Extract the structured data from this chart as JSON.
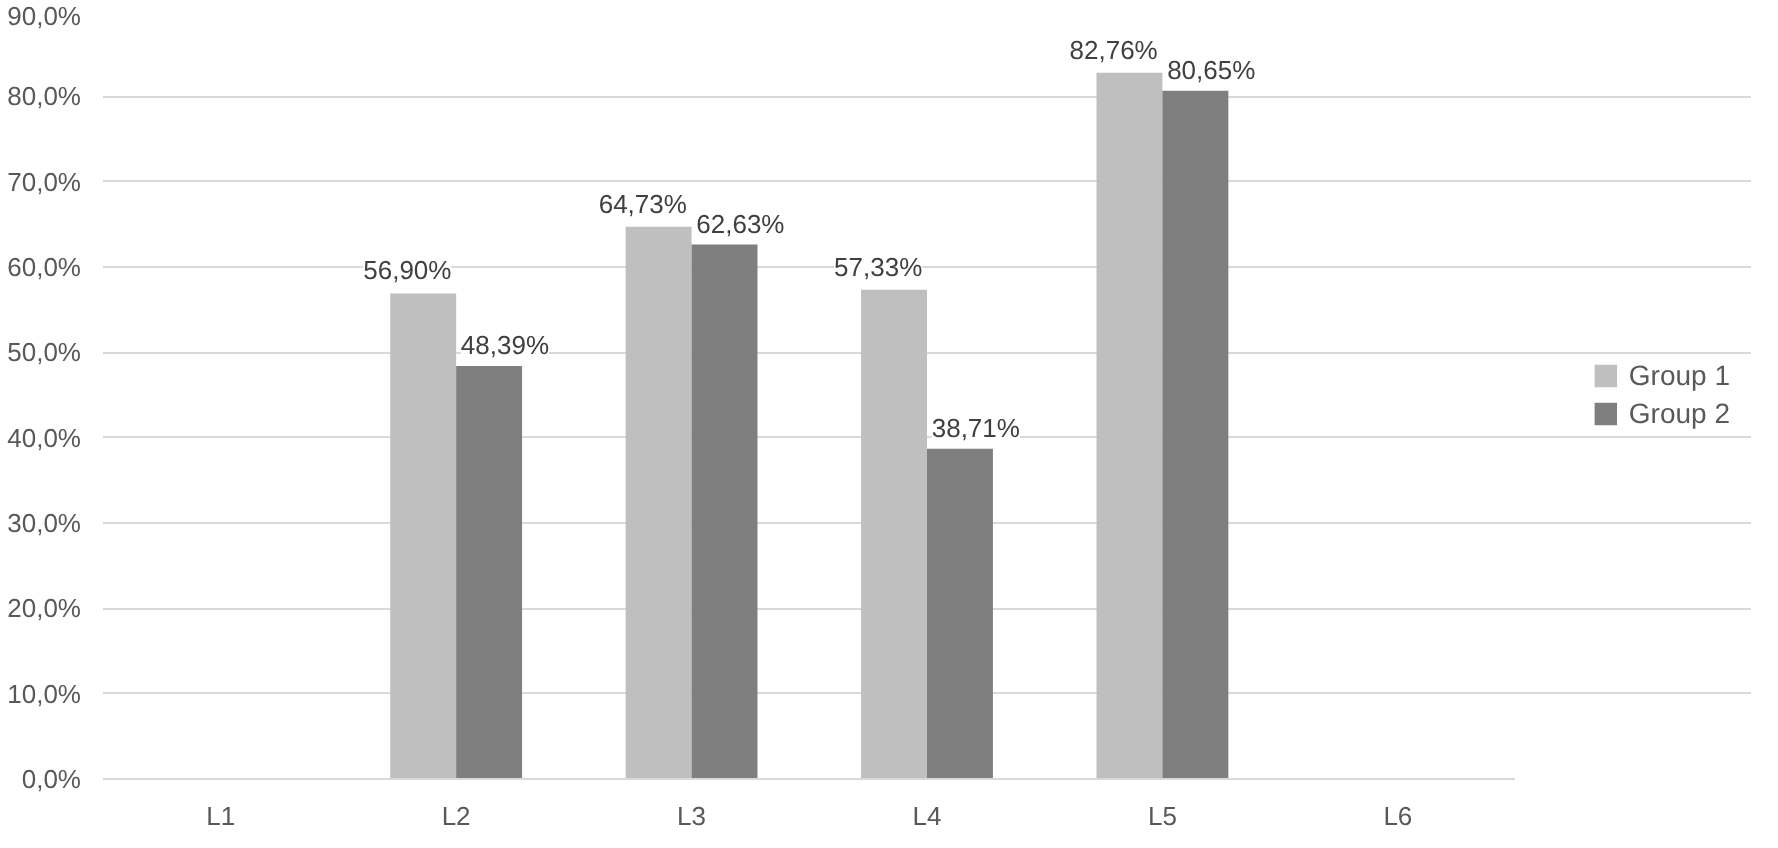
{
  "chart_data": {
    "type": "bar",
    "categories": [
      "L1",
      "L2",
      "L3",
      "L4",
      "L5",
      "L6"
    ],
    "series": [
      {
        "name": "Group 1",
        "color": "#bfbfbf",
        "values": [
          null,
          56.9,
          64.73,
          57.33,
          82.76,
          null
        ],
        "value_labels": [
          null,
          "56,90%",
          "64,73%",
          "57,33%",
          "82,76%",
          null
        ]
      },
      {
        "name": "Group 2",
        "color": "#7f7f7f",
        "values": [
          null,
          48.39,
          62.63,
          38.71,
          80.65,
          null
        ],
        "value_labels": [
          null,
          "48,39%",
          "62,63%",
          "38,71%",
          "80,65%",
          null
        ]
      }
    ],
    "ylim": [
      0,
      90
    ],
    "yticks": [
      {
        "value": 0,
        "label": "0,0%"
      },
      {
        "value": 10,
        "label": "10,0%"
      },
      {
        "value": 20,
        "label": "20,0%"
      },
      {
        "value": 30,
        "label": "30,0%"
      },
      {
        "value": 40,
        "label": "40,0%"
      },
      {
        "value": 50,
        "label": "50,0%"
      },
      {
        "value": 60,
        "label": "60,0%"
      },
      {
        "value": 70,
        "label": "70,0%"
      },
      {
        "value": 80,
        "label": "80,0%"
      },
      {
        "value": 90,
        "label": "90,0%"
      }
    ],
    "grid": "y",
    "legend": "right"
  }
}
